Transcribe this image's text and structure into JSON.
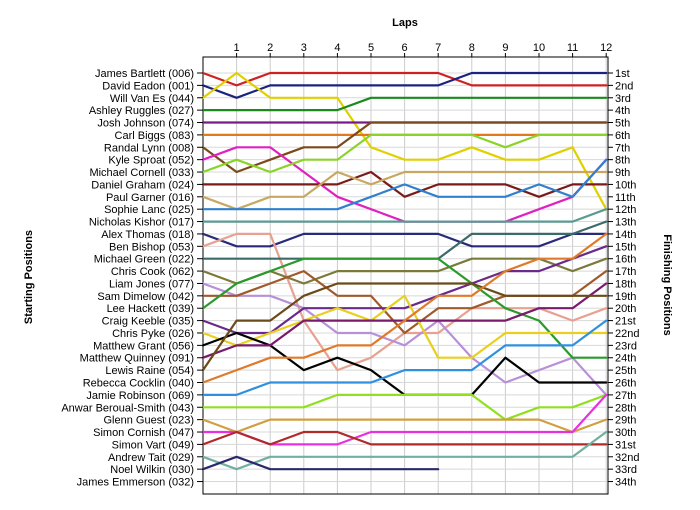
{
  "chart_data": {
    "type": "line",
    "title": "Laps",
    "ylabel_left": "Starting Positions",
    "ylabel_right": "Finishing Positions",
    "x": [
      0,
      1,
      2,
      3,
      4,
      5,
      6,
      7,
      8,
      9,
      10,
      11,
      12
    ],
    "lap_labels": [
      "1",
      "2",
      "3",
      "4",
      "5",
      "6",
      "7",
      "8",
      "9",
      "10",
      "11",
      "12"
    ],
    "finishing_positions": [
      "1st",
      "2nd",
      "3rd",
      "4th",
      "5th",
      "6th",
      "7th",
      "8th",
      "9th",
      "10th",
      "11th",
      "12th",
      "13th",
      "14th",
      "15th",
      "16th",
      "17th",
      "18th",
      "19th",
      "20th",
      "21st",
      "22nd",
      "23rd",
      "24th",
      "25th",
      "26th",
      "27th",
      "28th",
      "29th",
      "30th",
      "31st",
      "32nd",
      "33rd",
      "34th"
    ],
    "grid": true,
    "series": [
      {
        "name": "James Bartlett (006)",
        "color": "#cc2222",
        "values": [
          1,
          2,
          1,
          1,
          1,
          1,
          1,
          1,
          2,
          2,
          2,
          2,
          2
        ]
      },
      {
        "name": "David Eadon (001)",
        "color": "#1a237e",
        "values": [
          2,
          3,
          2,
          2,
          2,
          2,
          2,
          2,
          1,
          1,
          1,
          1,
          1
        ]
      },
      {
        "name": "Will Van Es (044)",
        "color": "#e0d000",
        "values": [
          3,
          1,
          3,
          3,
          3,
          7,
          8,
          8,
          7,
          8,
          8,
          7,
          12
        ]
      },
      {
        "name": "Ashley Ruggles (027)",
        "color": "#1a8a1a",
        "values": [
          4,
          4,
          4,
          4,
          4,
          3,
          3,
          3,
          3,
          3,
          3,
          3,
          3
        ]
      },
      {
        "name": "Josh Johnson (074)",
        "color": "#7a1a8a",
        "values": [
          5,
          5,
          5,
          5,
          5,
          5,
          5,
          5,
          5,
          5,
          5,
          5,
          5
        ]
      },
      {
        "name": "Carl Biggs (083)",
        "color": "#e07a1a",
        "values": [
          6,
          6,
          6,
          6,
          6,
          6,
          6,
          6,
          6,
          6,
          6,
          6,
          6
        ]
      },
      {
        "name": "Randal Lynn (008)",
        "color": "#7a4a1a",
        "values": [
          7,
          9,
          8,
          7,
          7,
          5,
          5,
          5,
          5,
          5,
          5,
          5,
          5
        ]
      },
      {
        "name": "Kyle Sproat (052)",
        "color": "#e020c0",
        "values": [
          8,
          7,
          7,
          9,
          11,
          12,
          13,
          13,
          13,
          13,
          12,
          11,
          8
        ]
      },
      {
        "name": "Michael Cornell (033)",
        "color": "#8ad42a",
        "values": [
          9,
          8,
          9,
          8,
          8,
          6,
          6,
          6,
          6,
          7,
          6,
          6,
          6
        ]
      },
      {
        "name": "Daniel Graham (024)",
        "color": "#7a1a1a",
        "values": [
          10,
          10,
          10,
          10,
          10,
          9,
          11,
          10,
          10,
          10,
          11,
          10,
          10
        ]
      },
      {
        "name": "Paul Garner (016)",
        "color": "#c8a860",
        "values": [
          11,
          12,
          11,
          11,
          9,
          10,
          9,
          9,
          9,
          9,
          9,
          9,
          9
        ]
      },
      {
        "name": "Sophie Lanc (025)",
        "color": "#3080d0",
        "values": [
          12,
          12,
          12,
          12,
          12,
          11,
          10,
          11,
          11,
          11,
          10,
          11,
          8
        ]
      },
      {
        "name": "Nicholas Kishor (017)",
        "color": "#5a9a90",
        "values": [
          13,
          13,
          13,
          13,
          13,
          13,
          13,
          13,
          13,
          13,
          13,
          13,
          12
        ]
      },
      {
        "name": "Alex Thomas (018)",
        "color": "#2a2a7a",
        "values": [
          14,
          15,
          15,
          14,
          14,
          14,
          14,
          14,
          15,
          15,
          15,
          14,
          14
        ]
      },
      {
        "name": "Ben Bishop (053)",
        "color": "#e8a090",
        "values": [
          15,
          14,
          14,
          21,
          25,
          24,
          22,
          22,
          20,
          20,
          20,
          21,
          20
        ]
      },
      {
        "name": "Michael Green (022)",
        "color": "#3a6a6a",
        "values": [
          16,
          16,
          16,
          16,
          16,
          16,
          16,
          16,
          14,
          14,
          14,
          14,
          13
        ]
      },
      {
        "name": "Chris Cook (062)",
        "color": "#7a7a3a",
        "values": [
          17,
          18,
          17,
          18,
          17,
          17,
          17,
          17,
          16,
          16,
          16,
          17,
          16
        ]
      },
      {
        "name": "Liam Jones (077)",
        "color": "#b890d8",
        "values": [
          18,
          19,
          19,
          20,
          22,
          22,
          23,
          21,
          24,
          26,
          25,
          24,
          27
        ]
      },
      {
        "name": "Sam Dimelow (042)",
        "color": "#a05a2a",
        "values": [
          19,
          19,
          18,
          17,
          19,
          19,
          22,
          20,
          20,
          19,
          19,
          19,
          17
        ]
      },
      {
        "name": "Lee Hackett (039)",
        "color": "#2a9a2a",
        "values": [
          20,
          18,
          17,
          16,
          16,
          16,
          16,
          16,
          18,
          20,
          21,
          24,
          24
        ]
      },
      {
        "name": "Craig Keeble (035)",
        "color": "#6a2a8a",
        "values": [
          21,
          22,
          22,
          20,
          20,
          20,
          20,
          19,
          18,
          17,
          17,
          16,
          15
        ]
      },
      {
        "name": "Chris Pyke (026)",
        "color": "#e8d020",
        "values": [
          22,
          23,
          22,
          21,
          20,
          21,
          19,
          24,
          24,
          22,
          22,
          22,
          22
        ]
      },
      {
        "name": "Matthew Grant (056)",
        "color": "#000000",
        "values": [
          23,
          22,
          23,
          25,
          24,
          25,
          27,
          27,
          27,
          24,
          26,
          26,
          26
        ]
      },
      {
        "name": "Matthew Quinney (091)",
        "color": "#7a1a6a",
        "values": [
          24,
          23,
          23,
          21,
          21,
          21,
          21,
          21,
          21,
          21,
          20,
          20,
          18
        ]
      },
      {
        "name": "Lewis Raine (054)",
        "color": "#6a4a1a",
        "values": [
          25,
          21,
          21,
          19,
          18,
          18,
          18,
          18,
          18,
          19,
          19,
          19,
          19
        ]
      },
      {
        "name": "Rebecca Cocklin (040)",
        "color": "#e07a2a",
        "values": [
          26,
          25,
          24,
          24,
          23,
          23,
          21,
          19,
          19,
          17,
          16,
          16,
          14
        ]
      },
      {
        "name": "Jamie Robinson (069)",
        "color": "#3090e0",
        "values": [
          27,
          27,
          26,
          26,
          26,
          26,
          25,
          25,
          25,
          23,
          23,
          23,
          21
        ]
      },
      {
        "name": "Anwar Beroual-Smith (043)",
        "color": "#90e020",
        "values": [
          28,
          28,
          28,
          28,
          27,
          27,
          27,
          27,
          27,
          29,
          28,
          28,
          27
        ]
      },
      {
        "name": "Glenn Guest (023)",
        "color": "#d0a040",
        "values": [
          29,
          30,
          29,
          29,
          29,
          29,
          29,
          29,
          29,
          29,
          29,
          30,
          29
        ]
      },
      {
        "name": "Simon Cornish (047)",
        "color": "#e830e0",
        "values": [
          30,
          30,
          31,
          31,
          31,
          30,
          30,
          30,
          30,
          30,
          30,
          30,
          27
        ]
      },
      {
        "name": "Simon Vart (049)",
        "color": "#b02a2a",
        "values": [
          31,
          30,
          31,
          30,
          30,
          31,
          31,
          31,
          31,
          31,
          31,
          31,
          31
        ]
      },
      {
        "name": "Andrew Tait (029)",
        "color": "#70b0a0",
        "values": [
          32,
          33,
          32,
          32,
          32,
          32,
          32,
          32,
          32,
          32,
          32,
          32,
          30
        ]
      },
      {
        "name": "Noel Wilkin (030)",
        "color": "#2a2a6a",
        "values": [
          33,
          32,
          33,
          33,
          33,
          33,
          33,
          33,
          null,
          null,
          null,
          null,
          null
        ]
      },
      {
        "name": "James Emmerson (032)",
        "color": "#999999",
        "values": [
          34,
          null,
          null,
          null,
          null,
          null,
          null,
          null,
          null,
          null,
          null,
          null,
          null
        ]
      }
    ]
  }
}
